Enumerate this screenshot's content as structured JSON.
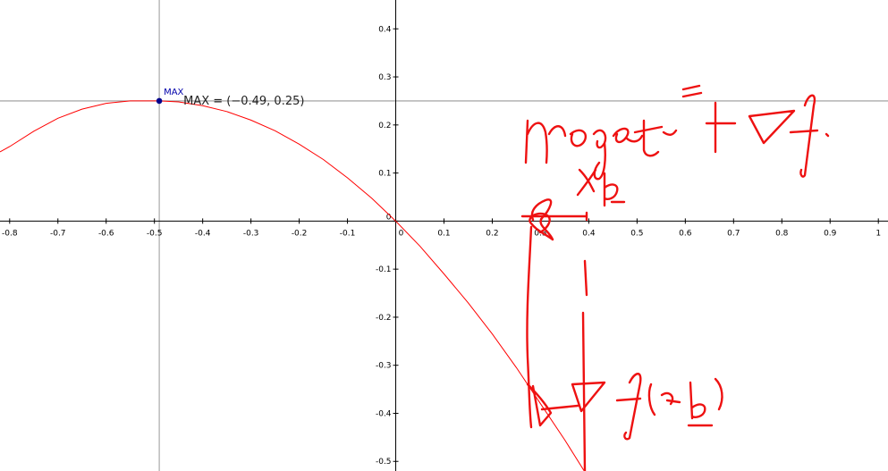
{
  "chart_data": {
    "type": "line",
    "x_range": [
      -0.82,
      1.02
    ],
    "y_range": [
      -0.52,
      0.46
    ],
    "x_ticks": [
      "-0.8",
      "-0.7",
      "-0.6",
      "-0.5",
      "-0.4",
      "-0.3",
      "-0.2",
      "-0.1",
      "0",
      "0.1",
      "0.2",
      "0.3",
      "0.4",
      "0.5",
      "0.6",
      "0.7",
      "0.8",
      "0.9",
      "1"
    ],
    "y_ticks": [
      "0.4",
      "0.3",
      "0.2",
      "0.1",
      "0",
      "-0.1",
      "-0.2",
      "-0.3",
      "-0.4",
      "-0.5"
    ],
    "series": [
      {
        "color": "#ff0000",
        "x": [
          -0.82,
          -0.8,
          -0.75,
          -0.7,
          -0.65,
          -0.6,
          -0.55,
          -0.49,
          -0.45,
          -0.4,
          -0.35,
          -0.3,
          -0.25,
          -0.2,
          -0.15,
          -0.1,
          -0.05,
          0,
          0.05,
          0.1,
          0.15,
          0.2,
          0.25,
          0.3,
          0.35,
          0.4
        ],
        "y": [
          0.144,
          0.155,
          0.187,
          0.214,
          0.233,
          0.245,
          0.25,
          0.25,
          0.248,
          0.24,
          0.228,
          0.21,
          0.188,
          0.16,
          0.128,
          0.09,
          0.048,
          0,
          -0.052,
          -0.11,
          -0.17,
          -0.235,
          -0.305,
          -0.38,
          -0.455,
          -0.535
        ]
      }
    ],
    "point": {
      "name": "MAX",
      "x": -0.49,
      "y": 0.25,
      "color": "#00008b"
    },
    "annotation": "MAX = (−0.49, 0.25)",
    "handwritten_notes": "projet° +∇f, x_k, ∇f(x_k)",
    "grid": false
  },
  "colors": {
    "axis": "#000000",
    "guide_line": "#999999",
    "curve": "#ff0000",
    "ink": "#ee1111",
    "point": "#00008b"
  }
}
